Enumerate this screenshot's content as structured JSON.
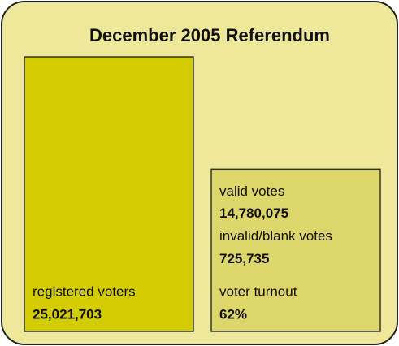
{
  "chart_data": {
    "type": "bar",
    "title": "December 2005 Referendum",
    "categories": [
      "registered voters",
      "valid votes"
    ],
    "values": [
      25021703,
      14780075
    ],
    "value_labels": [
      "25,021,703",
      "14,780,075"
    ],
    "colors": [
      "#d3cc00",
      "#ddd66a"
    ],
    "annotations": [
      {
        "label": "invalid/blank votes",
        "value": 725735,
        "value_label": "725,735"
      },
      {
        "label": "voter turnout",
        "value": 62,
        "value_label": "62%"
      }
    ]
  }
}
